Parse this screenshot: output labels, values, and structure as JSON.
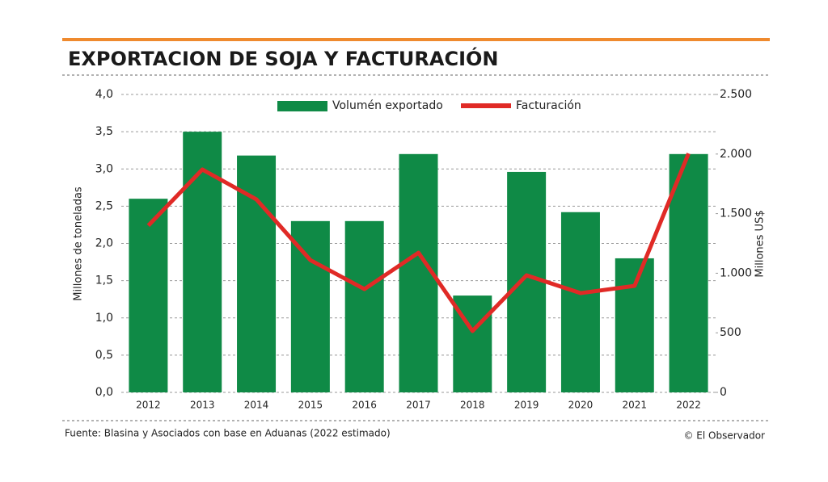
{
  "chart_data": {
    "type": "bar-line",
    "title": "EXPORTACION DE SOJA Y FACTURACIÓN",
    "ylabel": "Millones de toneladas",
    "y2label": "Millones US$",
    "categories": [
      "2012",
      "2013",
      "2014",
      "2015",
      "2016",
      "2017",
      "2018",
      "2019",
      "2020",
      "2021",
      "2022"
    ],
    "series": [
      {
        "name": "Volumén exportado",
        "type": "bar",
        "color": "#0f8a46",
        "values": [
          2.6,
          3.5,
          3.18,
          2.3,
          2.3,
          3.2,
          1.3,
          2.96,
          2.42,
          1.8,
          3.2
        ]
      },
      {
        "name": "Facturación",
        "type": "line",
        "axis": "y2",
        "color": "#e02a26",
        "values": [
          1400,
          1870,
          1620,
          1110,
          867,
          1172,
          515,
          982,
          833,
          894,
          2005
        ]
      }
    ],
    "ylim": [
      0,
      4
    ],
    "yticks": [
      {
        "value": 0,
        "label": "0,0"
      },
      {
        "value": 0.5,
        "label": "0,5"
      },
      {
        "value": 1,
        "label": "1,0"
      },
      {
        "value": 1.5,
        "label": "1,5"
      },
      {
        "value": 2,
        "label": "2,0"
      },
      {
        "value": 2.5,
        "label": "2,5"
      },
      {
        "value": 3,
        "label": "3,0"
      },
      {
        "value": 3.5,
        "label": "3,5"
      },
      {
        "value": 4,
        "label": "4,0"
      }
    ],
    "y2lim": [
      0,
      2500
    ],
    "y2ticks": [
      0,
      500,
      {
        "value": 1000,
        "label": "1.000"
      },
      {
        "value": 1500,
        "label": "1.500"
      },
      {
        "value": 2000,
        "label": "2.000"
      },
      {
        "value": 2500,
        "label": "2.500"
      }
    ],
    "grid": true,
    "legend": "top",
    "source": "Fuente: Blasina y Asociados con base en Aduanas (2022 estimado)",
    "credit": "© El Observador"
  }
}
